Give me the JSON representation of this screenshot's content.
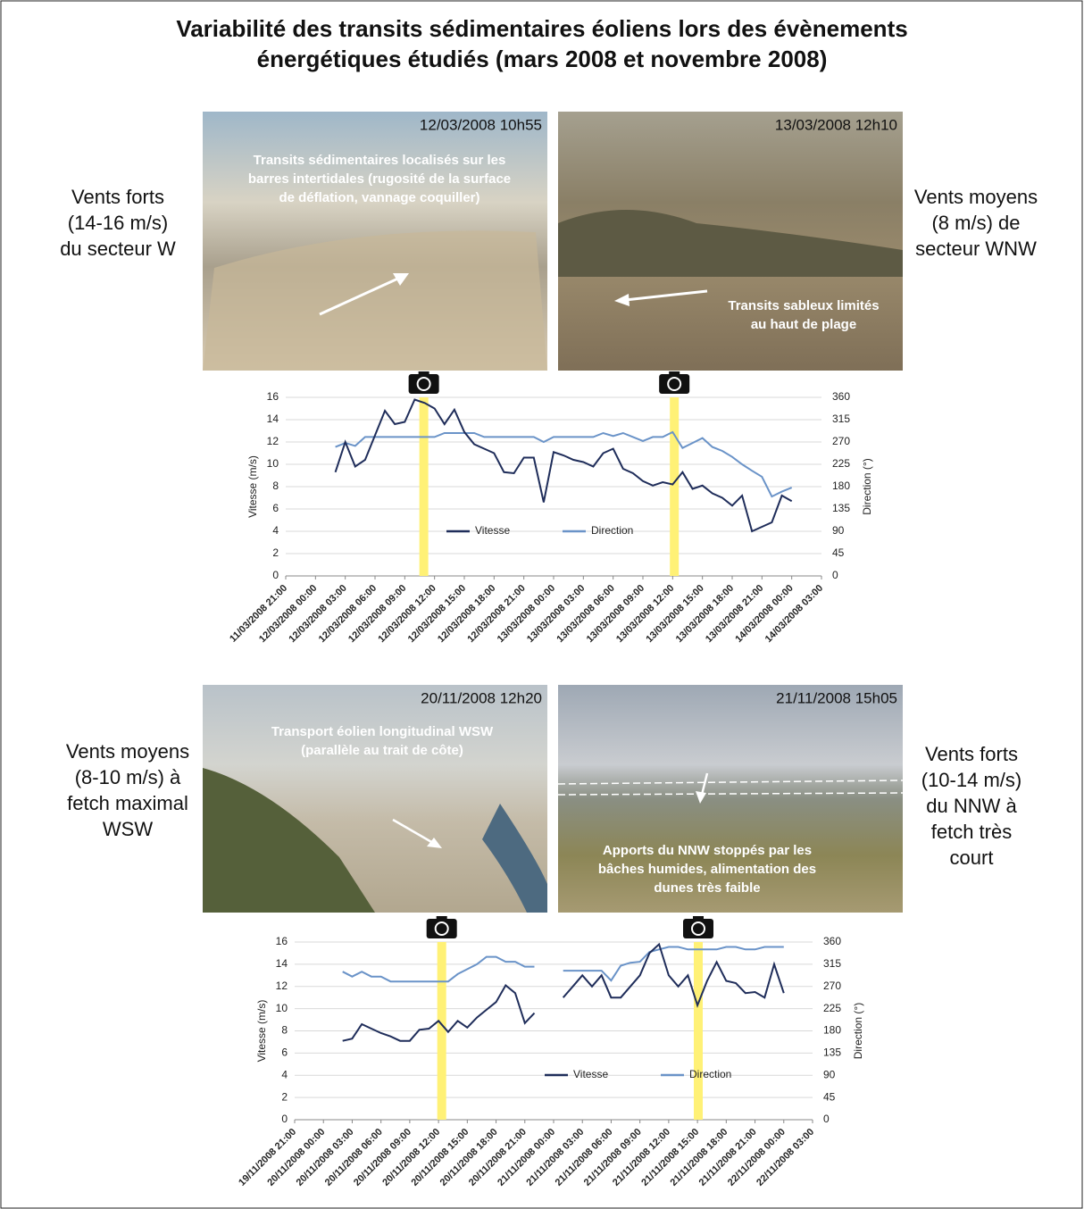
{
  "title": [
    "Variabilité des transits sédimentaires éoliens lors des évènements",
    "énergétiques étudiés (mars 2008 et novembre 2008)"
  ],
  "events": [
    {
      "description": [
        "Vents forts",
        "(14-16 m/s)",
        "du secteur W"
      ],
      "photo": {
        "timestamp": "12/03/2008 10h55",
        "caption": [
          "Transits sédimentaires localisés sur les",
          "barres intertidales (rugosité de la surface",
          "de déflation, vannage coquiller)"
        ]
      }
    },
    {
      "description": [
        "Vents moyens",
        "(8 m/s) de",
        "secteur WNW"
      ],
      "photo": {
        "timestamp": "13/03/2008 12h10",
        "caption": [
          "Transits sableux limités",
          "au haut de plage"
        ]
      }
    },
    {
      "description": [
        "Vents moyens",
        "(8-10 m/s) à",
        "fetch maximal",
        "WSW"
      ],
      "photo": {
        "timestamp": "20/11/2008 12h20",
        "caption": [
          "Transport éolien longitudinal WSW",
          "(parallèle au trait de côte)"
        ]
      }
    },
    {
      "description": [
        "Vents forts",
        "(10-14 m/s)",
        "du NNW à",
        "fetch très",
        "court"
      ],
      "photo": {
        "timestamp": "21/11/2008 15h05",
        "caption": [
          "Apports du NNW stoppés par les",
          "bâches humides, alimentation des",
          "dunes très faible"
        ]
      }
    }
  ],
  "chart_data": [
    {
      "type": "line",
      "ylabel": "Vitesse (m/s)",
      "y2label": "Direction (°)",
      "grid": true,
      "legend": "lower center",
      "xlim": [
        "11/03/2008 21:00",
        "14/03/2008 03:00"
      ],
      "xticks": [
        "11/03/2008 21:00",
        "12/03/2008 00:00",
        "12/03/2008 03:00",
        "12/03/2008 06:00",
        "12/03/2008 09:00",
        "12/03/2008 12:00",
        "12/03/2008 15:00",
        "12/03/2008 18:00",
        "12/03/2008 21:00",
        "13/03/2008 00:00",
        "13/03/2008 03:00",
        "13/03/2008 06:00",
        "13/03/2008 09:00",
        "13/03/2008 12:00",
        "13/03/2008 15:00",
        "13/03/2008 18:00",
        "13/03/2008 21:00",
        "14/03/2008 00:00",
        "14/03/2008 03:00"
      ],
      "ylim": [
        0,
        16
      ],
      "yticks": [
        0,
        2,
        4,
        6,
        8,
        10,
        12,
        14,
        16
      ],
      "y2lim": [
        0,
        360
      ],
      "y2ticks": [
        0,
        45,
        90,
        135,
        180,
        225,
        270,
        315,
        360
      ],
      "x": [
        "12/03/2008 02:00",
        "12/03/2008 03:00",
        "12/03/2008 04:00",
        "12/03/2008 05:00",
        "12/03/2008 06:00",
        "12/03/2008 07:00",
        "12/03/2008 08:00",
        "12/03/2008 09:00",
        "12/03/2008 10:00",
        "12/03/2008 11:00",
        "12/03/2008 12:00",
        "12/03/2008 13:00",
        "12/03/2008 14:00",
        "12/03/2008 15:00",
        "12/03/2008 16:00",
        "12/03/2008 17:00",
        "12/03/2008 18:00",
        "12/03/2008 19:00",
        "12/03/2008 20:00",
        "12/03/2008 21:00",
        "12/03/2008 22:00",
        "12/03/2008 23:00",
        "13/03/2008 00:00",
        "13/03/2008 01:00",
        "13/03/2008 02:00",
        "13/03/2008 03:00",
        "13/03/2008 04:00",
        "13/03/2008 05:00",
        "13/03/2008 06:00",
        "13/03/2008 07:00",
        "13/03/2008 08:00",
        "13/03/2008 09:00",
        "13/03/2008 10:00",
        "13/03/2008 11:00",
        "13/03/2008 12:00",
        "13/03/2008 13:00",
        "13/03/2008 14:00",
        "13/03/2008 15:00",
        "13/03/2008 16:00",
        "13/03/2008 17:00",
        "13/03/2008 18:00",
        "13/03/2008 19:00",
        "13/03/2008 20:00",
        "13/03/2008 21:00",
        "13/03/2008 22:00",
        "13/03/2008 23:00",
        "14/03/2008 00:00"
      ],
      "series": [
        {
          "name": "Vitesse",
          "color": "#1f2d5a",
          "values": [
            9.3,
            12.0,
            9.8,
            10.4,
            12.6,
            14.8,
            13.6,
            13.8,
            15.8,
            15.5,
            15.0,
            13.6,
            14.9,
            12.9,
            11.8,
            11.4,
            11.0,
            9.3,
            9.2,
            10.6,
            10.6,
            6.6,
            11.1,
            10.8,
            10.4,
            10.2,
            9.8,
            11.0,
            11.4,
            9.6,
            9.2,
            8.5,
            8.1,
            8.4,
            8.2,
            9.3,
            7.8,
            8.1,
            7.4,
            7.0,
            6.3,
            7.2,
            4.0,
            4.4,
            4.8,
            7.2,
            6.7
          ]
        },
        {
          "name": "Direction",
          "color": "#6a93c8",
          "axis": "y2",
          "values": [
            260,
            268,
            262,
            280,
            280,
            280,
            280,
            280,
            280,
            280,
            280,
            288,
            288,
            288,
            288,
            280,
            280,
            280,
            280,
            280,
            280,
            270,
            280,
            280,
            280,
            280,
            280,
            288,
            282,
            288,
            280,
            272,
            280,
            280,
            290,
            258,
            268,
            278,
            260,
            252,
            240,
            225,
            212,
            200,
            160,
            170,
            178
          ]
        }
      ]
    },
    {
      "type": "line",
      "ylabel": "Vitesse (m/s)",
      "y2label": "Direction (°)",
      "grid": true,
      "legend": "lower right",
      "xlim": [
        "19/11/2008 21:00",
        "22/11/2008 03:00"
      ],
      "xticks": [
        "19/11/2008 21:00",
        "20/11/2008 00:00",
        "20/11/2008 03:00",
        "20/11/2008 06:00",
        "20/11/2008 09:00",
        "20/11/2008 12:00",
        "20/11/2008 15:00",
        "20/11/2008 18:00",
        "20/11/2008 21:00",
        "21/11/2008 00:00",
        "21/11/2008 03:00",
        "21/11/2008 06:00",
        "21/11/2008 09:00",
        "21/11/2008 12:00",
        "21/11/2008 15:00",
        "21/11/2008 18:00",
        "21/11/2008 21:00",
        "22/11/2008 00:00",
        "22/11/2008 03:00"
      ],
      "ylim": [
        0,
        16
      ],
      "yticks": [
        0,
        2,
        4,
        6,
        8,
        10,
        12,
        14,
        16
      ],
      "y2lim": [
        0,
        360
      ],
      "y2ticks": [
        0,
        45,
        90,
        135,
        180,
        225,
        270,
        315,
        360
      ],
      "x": [
        "20/11/2008 02:00",
        "20/11/2008 03:00",
        "20/11/2008 04:00",
        "20/11/2008 05:00",
        "20/11/2008 06:00",
        "20/11/2008 07:00",
        "20/11/2008 08:00",
        "20/11/2008 09:00",
        "20/11/2008 10:00",
        "20/11/2008 11:00",
        "20/11/2008 12:00",
        "20/11/2008 13:00",
        "20/11/2008 14:00",
        "20/11/2008 15:00",
        "20/11/2008 16:00",
        "20/11/2008 17:00",
        "20/11/2008 18:00",
        "20/11/2008 19:00",
        "20/11/2008 20:00",
        "20/11/2008 21:00",
        "20/11/2008 22:00",
        "20/11/2008 23:00",
        "21/11/2008 00:00",
        "21/11/2008 01:00",
        "21/11/2008 02:00",
        "21/11/2008 03:00",
        "21/11/2008 04:00",
        "21/11/2008 05:00",
        "21/11/2008 06:00",
        "21/11/2008 07:00",
        "21/11/2008 08:00",
        "21/11/2008 09:00",
        "21/11/2008 10:00",
        "21/11/2008 11:00",
        "21/11/2008 12:00",
        "21/11/2008 13:00",
        "21/11/2008 14:00",
        "21/11/2008 15:00",
        "21/11/2008 16:00",
        "21/11/2008 17:00",
        "21/11/2008 18:00",
        "21/11/2008 19:00",
        "21/11/2008 20:00",
        "21/11/2008 21:00",
        "21/11/2008 22:00",
        "21/11/2008 23:00",
        "22/11/2008 00:00"
      ],
      "series": [
        {
          "name": "Vitesse",
          "color": "#1f2d5a",
          "values": [
            7.1,
            7.3,
            8.6,
            8.2,
            7.8,
            7.5,
            7.1,
            7.1,
            8.1,
            8.2,
            8.9,
            7.9,
            8.9,
            8.3,
            9.2,
            9.9,
            10.6,
            12.1,
            11.4,
            8.7,
            9.6,
            null,
            null,
            11.0,
            12.0,
            13.0,
            12.0,
            13.0,
            11.0,
            11.0,
            12.0,
            13.0,
            15.0,
            15.8,
            13.0,
            12.0,
            13.0,
            10.3,
            12.5,
            14.2,
            12.5,
            12.3,
            11.4,
            11.5,
            11.0,
            14.0,
            11.4
          ]
        },
        {
          "name": "Direction",
          "color": "#6a93c8",
          "axis": "y2",
          "values": [
            300,
            290,
            300,
            290,
            290,
            280,
            280,
            280,
            280,
            280,
            280,
            280,
            295,
            305,
            315,
            330,
            330,
            320,
            320,
            310,
            310,
            null,
            null,
            302,
            302,
            302,
            302,
            302,
            282,
            312,
            318,
            320,
            340,
            345,
            350,
            350,
            345,
            345,
            345,
            345,
            350,
            350,
            345,
            345,
            350,
            350,
            350
          ]
        }
      ]
    }
  ]
}
